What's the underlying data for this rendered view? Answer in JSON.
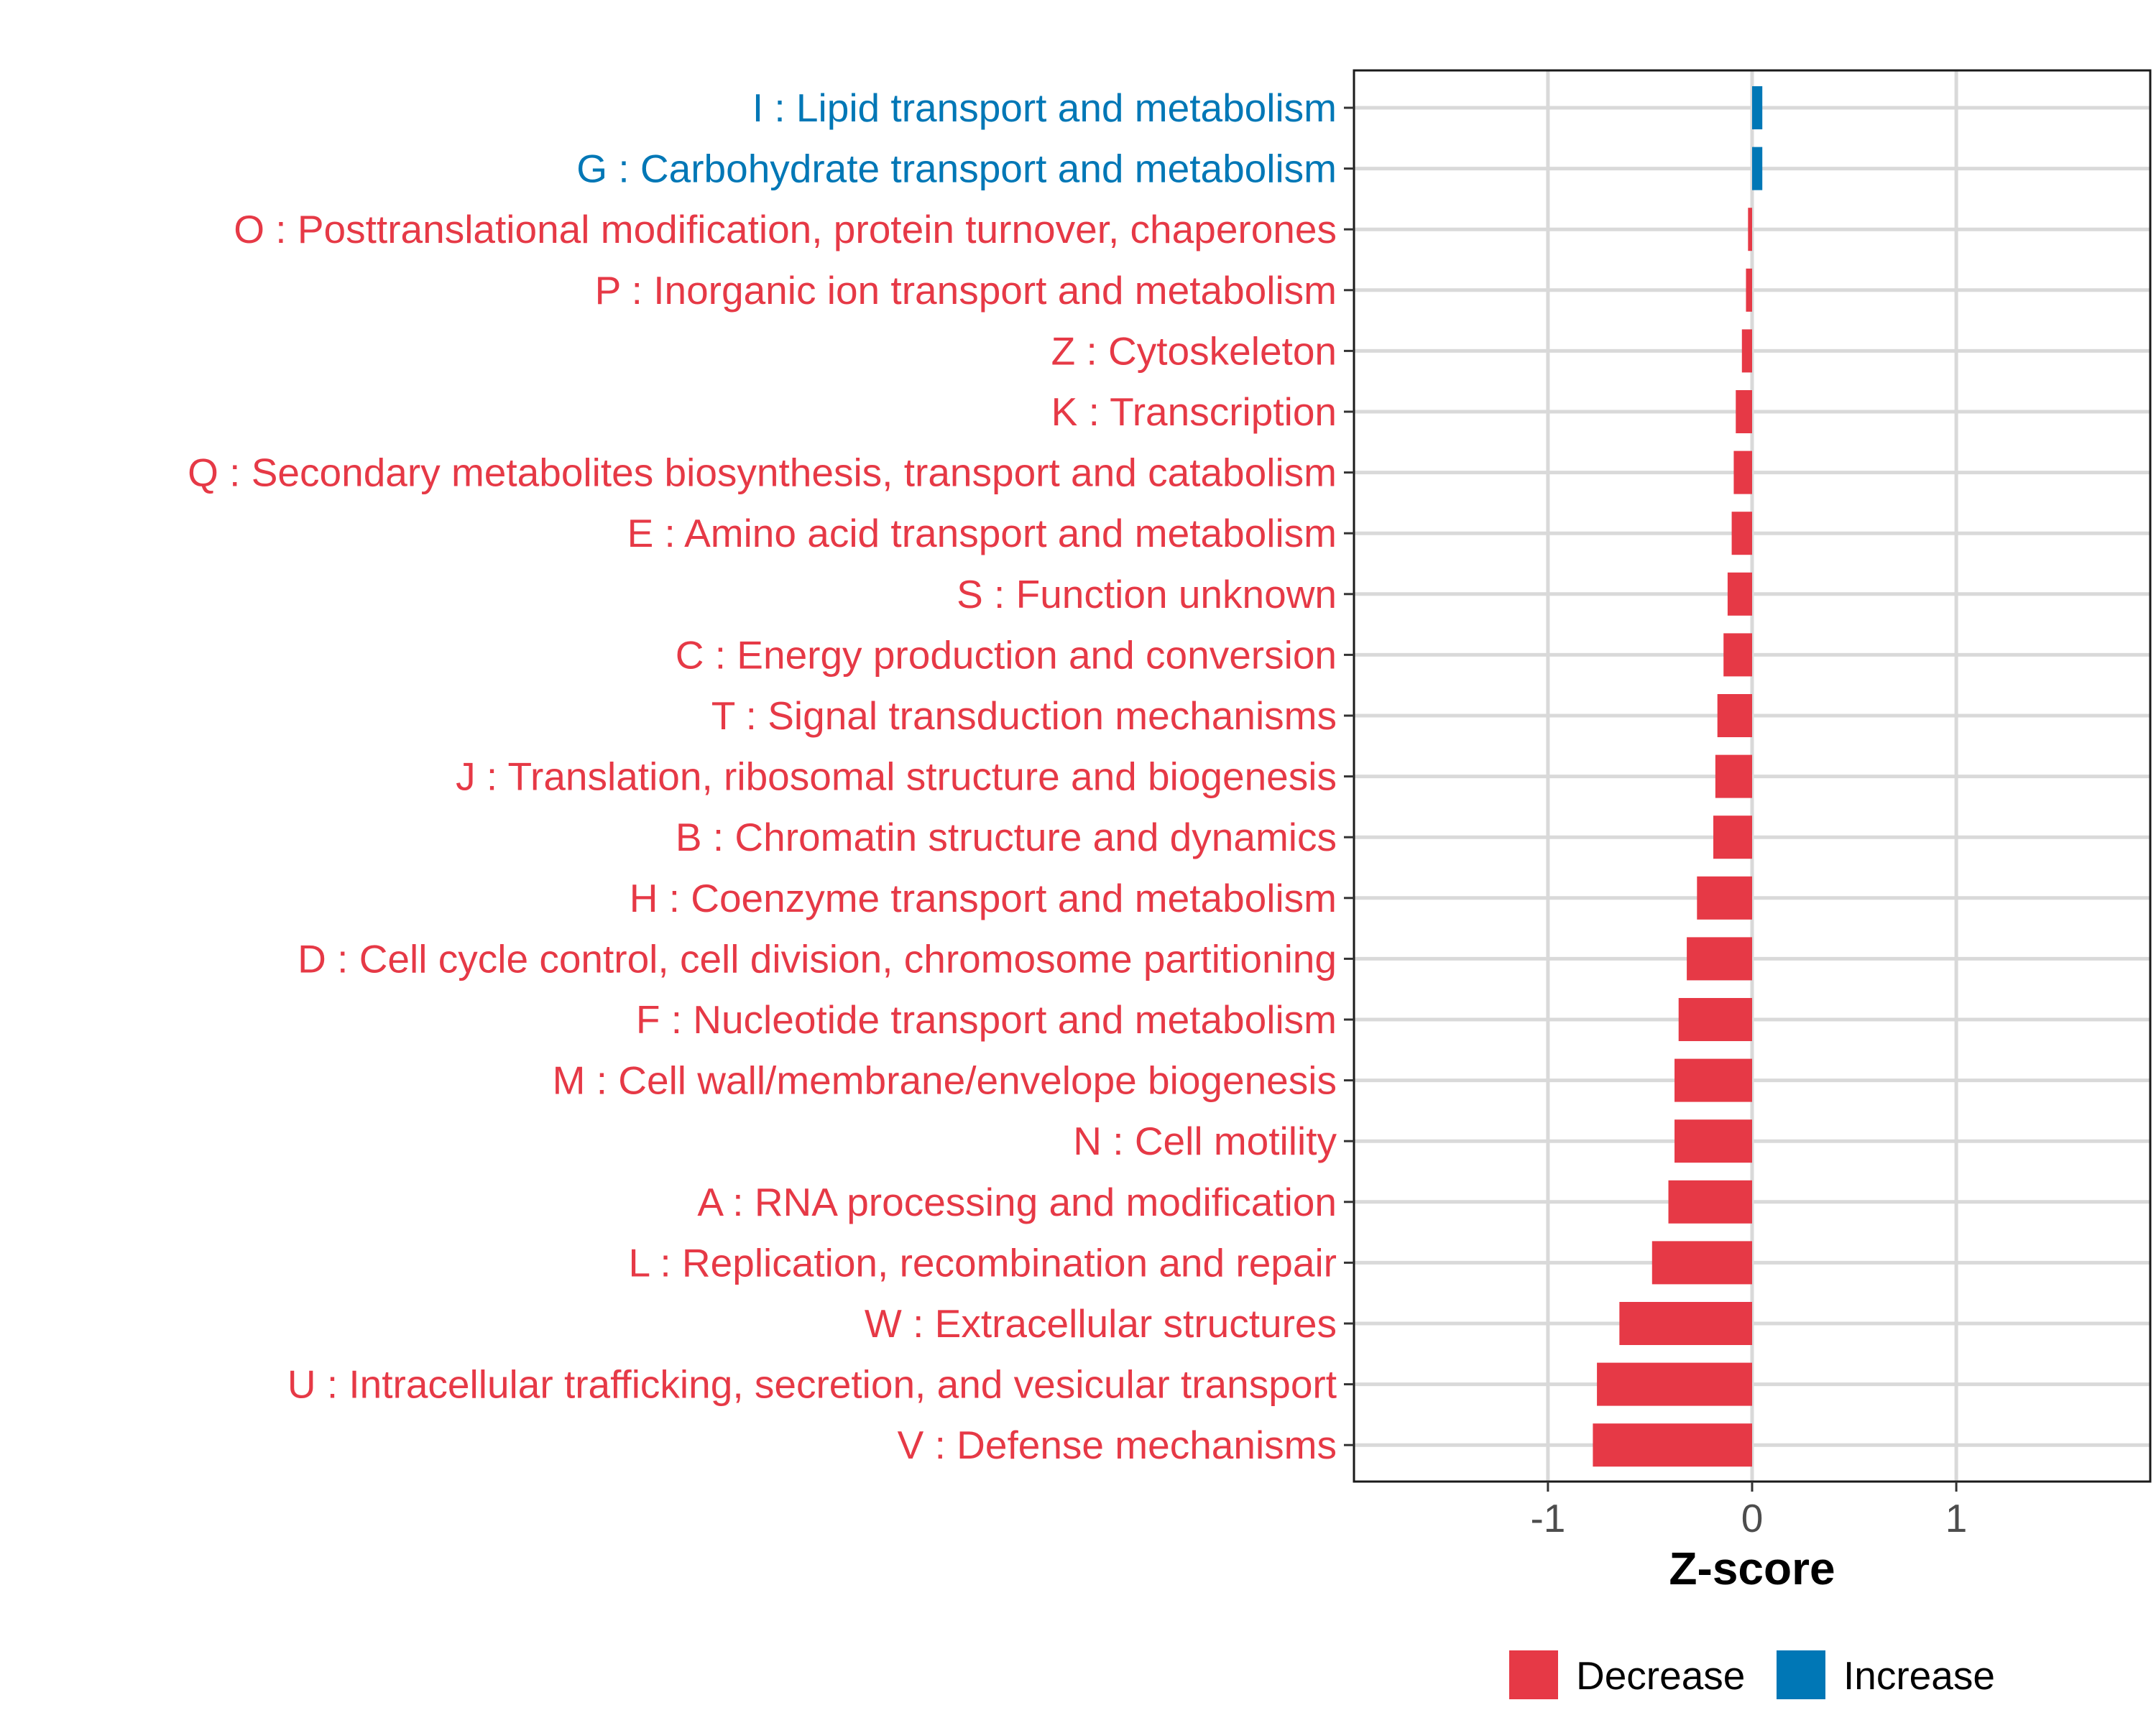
{
  "chart_data": {
    "type": "bar",
    "orientation": "horizontal",
    "title": "",
    "xlabel": "Z-score",
    "ylabel": "",
    "xlim": [
      -1.95,
      1.95
    ],
    "xticks": [
      -1,
      0,
      1
    ],
    "xtick_labels": [
      "-1",
      "0",
      "1"
    ],
    "grid": true,
    "legend_position": "bottom",
    "colors": {
      "Decrease": "#E63946",
      "Increase": "#0077B6",
      "axis_text": "#4D4D4D",
      "grid": "#D9D9D9"
    },
    "legend": [
      {
        "label": "Decrease",
        "color": "#E63946"
      },
      {
        "label": "Increase",
        "color": "#0077B6"
      }
    ],
    "categories": [
      "I : Lipid transport and metabolism",
      "G : Carbohydrate transport and metabolism",
      "O : Posttranslational modification, protein turnover, chaperones",
      "P : Inorganic ion transport and metabolism",
      "Z : Cytoskeleton",
      "K : Transcription",
      "Q : Secondary metabolites biosynthesis, transport and catabolism",
      "E : Amino acid transport and metabolism",
      "S : Function unknown",
      "C : Energy production and conversion",
      "T : Signal transduction mechanisms",
      "J : Translation, ribosomal structure and biogenesis",
      "B : Chromatin structure and dynamics",
      "H : Coenzyme transport and metabolism",
      "D : Cell cycle control, cell division, chromosome partitioning",
      "F : Nucleotide transport and metabolism",
      "M : Cell wall/membrane/envelope biogenesis",
      "N : Cell motility",
      "A : RNA processing and modification",
      "L : Replication, recombination and repair",
      "W : Extracellular structures",
      "U : Intracellular trafficking, secretion, and vesicular transport",
      "V : Defense mechanisms"
    ],
    "values": [
      0.05,
      0.05,
      -0.02,
      -0.03,
      -0.05,
      -0.08,
      -0.09,
      -0.1,
      -0.12,
      -0.14,
      -0.17,
      -0.18,
      -0.19,
      -0.27,
      -0.32,
      -0.36,
      -0.38,
      -0.38,
      -0.41,
      -0.49,
      -0.65,
      -0.76,
      -0.78
    ],
    "groups": [
      "Increase",
      "Increase",
      "Decrease",
      "Decrease",
      "Decrease",
      "Decrease",
      "Decrease",
      "Decrease",
      "Decrease",
      "Decrease",
      "Decrease",
      "Decrease",
      "Decrease",
      "Decrease",
      "Decrease",
      "Decrease",
      "Decrease",
      "Decrease",
      "Decrease",
      "Decrease",
      "Decrease",
      "Decrease",
      "Decrease"
    ]
  }
}
